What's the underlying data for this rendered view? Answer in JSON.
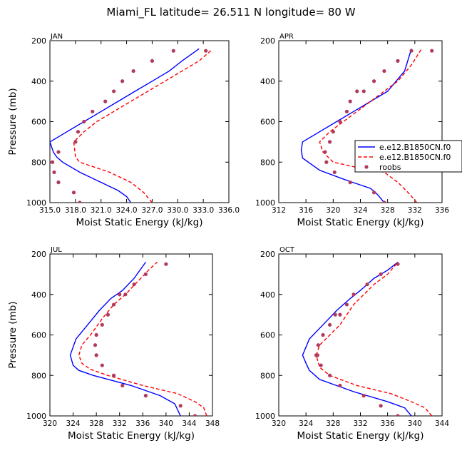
{
  "title": "Miami_FL  latitude= 26.511 N longitude= 80 W",
  "colors": {
    "model1": "#0000ff",
    "model2": "#ff0000",
    "obs": "#b03a5b",
    "axis": "#000000"
  },
  "legend": {
    "entries": [
      "e.e12.B1850CN.f0",
      "e.e12.B1850CN.f0",
      "roobs"
    ]
  },
  "chart_data": [
    {
      "type": "line",
      "panel": "JAN",
      "xlabel": "Moist Static Energy (kJ/kg)",
      "ylabel": "Pressure (mb)",
      "xlim": [
        315.0,
        336.0
      ],
      "ylim": [
        1000,
        200
      ],
      "xticks": [
        315.0,
        318.0,
        321.0,
        324.0,
        327.0,
        330.0,
        333.0,
        336.0
      ],
      "xticklabels": [
        "315.0",
        "318.0",
        "321.0",
        "324.0",
        "327.0",
        "330.0",
        "333.0",
        "336.0"
      ],
      "yticks": [
        200,
        400,
        600,
        800,
        1000
      ],
      "series": [
        {
          "name": "e.e12.B1850CN.f0",
          "style": "solid",
          "x": [
            324.5,
            324.0,
            323.0,
            321.0,
            318.5,
            316.5,
            315.8,
            315.4,
            315.0,
            317.0,
            319.0,
            321.0,
            323.0,
            325.0,
            327.0,
            329.0,
            330.5,
            332.5
          ],
          "y": [
            1000,
            970,
            940,
            900,
            850,
            800,
            775,
            750,
            700,
            650,
            600,
            550,
            500,
            450,
            400,
            350,
            300,
            240
          ]
        },
        {
          "name": "e.e12.B1850CN.f0",
          "style": "dashed",
          "x": [
            327.0,
            326.0,
            324.5,
            322.0,
            318.5,
            318.0,
            317.8,
            319.0,
            320.5,
            322.5,
            324.5,
            326.5,
            328.5,
            330.5,
            332.5,
            334.0
          ],
          "y": [
            1000,
            950,
            900,
            850,
            800,
            775,
            700,
            650,
            600,
            550,
            500,
            450,
            400,
            350,
            300,
            245
          ]
        },
        {
          "name": "roobs",
          "style": "markers",
          "x": [
            318.5,
            317.8,
            316.0,
            315.5,
            315.3,
            316.0,
            318.0,
            318.3,
            319.0,
            320.0,
            321.5,
            322.5,
            323.5,
            324.8,
            327.0,
            329.5,
            333.3
          ],
          "y": [
            1000,
            950,
            900,
            850,
            800,
            750,
            700,
            650,
            600,
            550,
            500,
            450,
            400,
            350,
            300,
            250,
            250
          ]
        }
      ]
    },
    {
      "type": "line",
      "panel": "APR",
      "xlabel": "Moist Static Energy (kJ/kg)",
      "ylabel": "",
      "xlim": [
        312,
        336
      ],
      "ylim": [
        1000,
        200
      ],
      "xticks": [
        312,
        316,
        320,
        324,
        328,
        332,
        336
      ],
      "xticklabels": [
        "312",
        "316",
        "320",
        "324",
        "328",
        "332",
        "336"
      ],
      "yticks": [
        200,
        400,
        600,
        800,
        1000
      ],
      "series": [
        {
          "name": "e.e12.B1850CN.f0",
          "style": "solid",
          "x": [
            327.5,
            326.5,
            325.5,
            322.0,
            318.0,
            315.5,
            315.3,
            315.5,
            318.0,
            320.5,
            323.0,
            325.5,
            328.0,
            330.5,
            331.5
          ],
          "y": [
            1000,
            960,
            930,
            890,
            840,
            780,
            740,
            700,
            650,
            600,
            550,
            500,
            450,
            350,
            240
          ]
        },
        {
          "name": "e.e12.B1850CN.f0",
          "style": "dashed",
          "x": [
            332.3,
            331.0,
            329.5,
            327.5,
            324.0,
            320.0,
            318.5,
            318.0,
            319.5,
            321.5,
            323.5,
            325.5,
            327.5,
            329.5,
            331.5,
            333.0
          ],
          "y": [
            1000,
            950,
            900,
            850,
            830,
            800,
            750,
            700,
            650,
            600,
            550,
            500,
            450,
            400,
            320,
            240
          ]
        },
        {
          "name": "roobs",
          "style": "markers",
          "x": [
            327.5,
            326.0,
            322.5,
            320.2,
            319.0,
            318.8,
            319.5,
            320.0,
            321.0,
            322.0,
            322.5,
            323.5,
            324.5,
            326.0,
            327.5,
            329.5,
            331.5,
            334.5
          ],
          "y": [
            1000,
            950,
            900,
            850,
            800,
            750,
            700,
            650,
            600,
            550,
            500,
            450,
            450,
            400,
            350,
            300,
            250,
            250
          ]
        }
      ]
    },
    {
      "type": "line",
      "panel": "JUL",
      "xlabel": "Moist Static Energy (kJ/kg)",
      "ylabel": "Pressure (mb)",
      "xlim": [
        320,
        348
      ],
      "ylim": [
        1000,
        200
      ],
      "xticks": [
        320,
        324,
        328,
        332,
        336,
        340,
        344,
        348
      ],
      "xticklabels": [
        "320",
        "324",
        "328",
        "332",
        "336",
        "340",
        "344",
        "348"
      ],
      "yticks": [
        200,
        400,
        600,
        800,
        1000
      ],
      "series": [
        {
          "name": "e.e12.B1850CN.f0",
          "style": "solid",
          "x": [
            342.5,
            341.5,
            339.0,
            334.0,
            327.5,
            325.0,
            324.0,
            323.5,
            324.5,
            326.5,
            328.5,
            330.5,
            332.5,
            334.5,
            336.5
          ],
          "y": [
            1000,
            940,
            900,
            850,
            800,
            775,
            750,
            700,
            620,
            550,
            480,
            420,
            380,
            320,
            240
          ]
        },
        {
          "name": "e.e12.B1850CN.f0",
          "style": "dashed",
          "x": [
            347.0,
            346.5,
            345.0,
            342.0,
            336.0,
            330.0,
            327.0,
            325.5,
            325.0,
            325.5,
            327.0,
            329.0,
            331.0,
            333.0,
            335.0,
            337.0,
            338.5
          ],
          "y": [
            1000,
            960,
            930,
            890,
            850,
            800,
            770,
            740,
            700,
            650,
            600,
            520,
            450,
            400,
            340,
            280,
            240
          ]
        },
        {
          "name": "roobs",
          "style": "markers",
          "x": [
            345.0,
            342.5,
            336.5,
            332.5,
            331.0,
            329.0,
            328.0,
            327.8,
            328.0,
            329.0,
            330.0,
            331.0,
            332.0,
            333.0,
            334.5,
            336.5,
            340.0
          ],
          "y": [
            1000,
            950,
            900,
            850,
            800,
            750,
            700,
            650,
            600,
            550,
            500,
            450,
            400,
            400,
            350,
            300,
            250
          ]
        }
      ]
    },
    {
      "type": "line",
      "panel": "OCT",
      "xlabel": "Moist Static Energy (kJ/kg)",
      "ylabel": "",
      "xlim": [
        320,
        344
      ],
      "ylim": [
        1000,
        200
      ],
      "xticks": [
        320,
        324,
        328,
        332,
        336,
        340,
        344
      ],
      "xticklabels": [
        "320",
        "324",
        "328",
        "332",
        "336",
        "340",
        "344"
      ],
      "yticks": [
        200,
        400,
        600,
        800,
        1000
      ],
      "series": [
        {
          "name": "e.e12.B1850CN.f0",
          "style": "solid",
          "x": [
            339.5,
            338.5,
            336.0,
            331.0,
            326.0,
            324.5,
            324.0,
            323.5,
            324.5,
            326.5,
            328.5,
            330.5,
            332.0,
            334.0,
            336.0,
            337.5
          ],
          "y": [
            1000,
            960,
            930,
            880,
            820,
            775,
            740,
            700,
            620,
            550,
            480,
            420,
            380,
            320,
            280,
            240
          ]
        },
        {
          "name": "e.e12.B1850CN.f0",
          "style": "dashed",
          "x": [
            342.5,
            341.5,
            339.5,
            336.5,
            331.5,
            327.5,
            326.0,
            325.5,
            326.0,
            327.5,
            329.0,
            330.0,
            331.0,
            332.5,
            334.0,
            336.0,
            337.5
          ],
          "y": [
            1000,
            960,
            930,
            890,
            850,
            800,
            760,
            700,
            650,
            600,
            550,
            500,
            450,
            400,
            350,
            300,
            240
          ]
        },
        {
          "name": "roobs",
          "style": "markers",
          "x": [
            337.5,
            335.0,
            332.5,
            329.0,
            327.5,
            326.2,
            325.7,
            325.5,
            325.8,
            326.5,
            327.5,
            328.3,
            329.0,
            330.0,
            331.0,
            333.0,
            335.0,
            337.5
          ],
          "y": [
            1000,
            950,
            900,
            850,
            800,
            750,
            700,
            700,
            650,
            600,
            550,
            500,
            500,
            450,
            400,
            350,
            300,
            250
          ]
        }
      ]
    }
  ]
}
